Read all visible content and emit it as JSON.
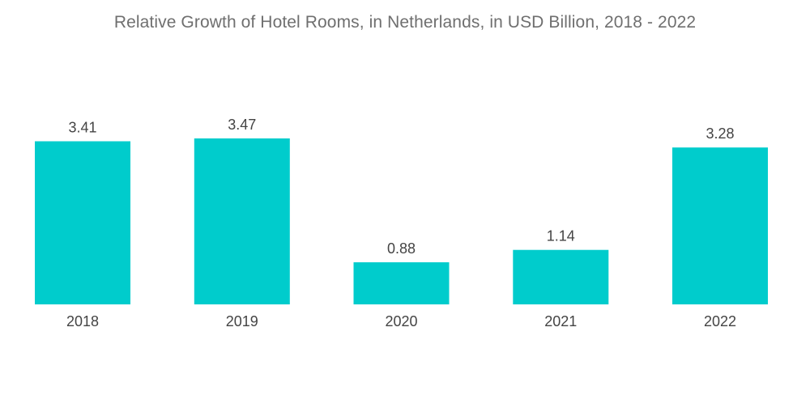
{
  "chart_data": {
    "type": "bar",
    "title": "Relative Growth of Hotel Rooms, in Netherlands, in USD Billion, 2018 - 2022",
    "categories": [
      "2018",
      "2019",
      "2020",
      "2021",
      "2022"
    ],
    "values": [
      3.41,
      3.47,
      0.88,
      1.14,
      3.28
    ],
    "value_labels": [
      "3.41",
      "3.47",
      "0.88",
      "1.14",
      "3.28"
    ],
    "xlabel": "",
    "ylabel": "",
    "ylim": [
      0,
      3.47
    ],
    "grid": false,
    "legend": "none",
    "colors": {
      "bar": "#00cccc",
      "title": "#6f6f6f",
      "text": "#444444"
    }
  }
}
